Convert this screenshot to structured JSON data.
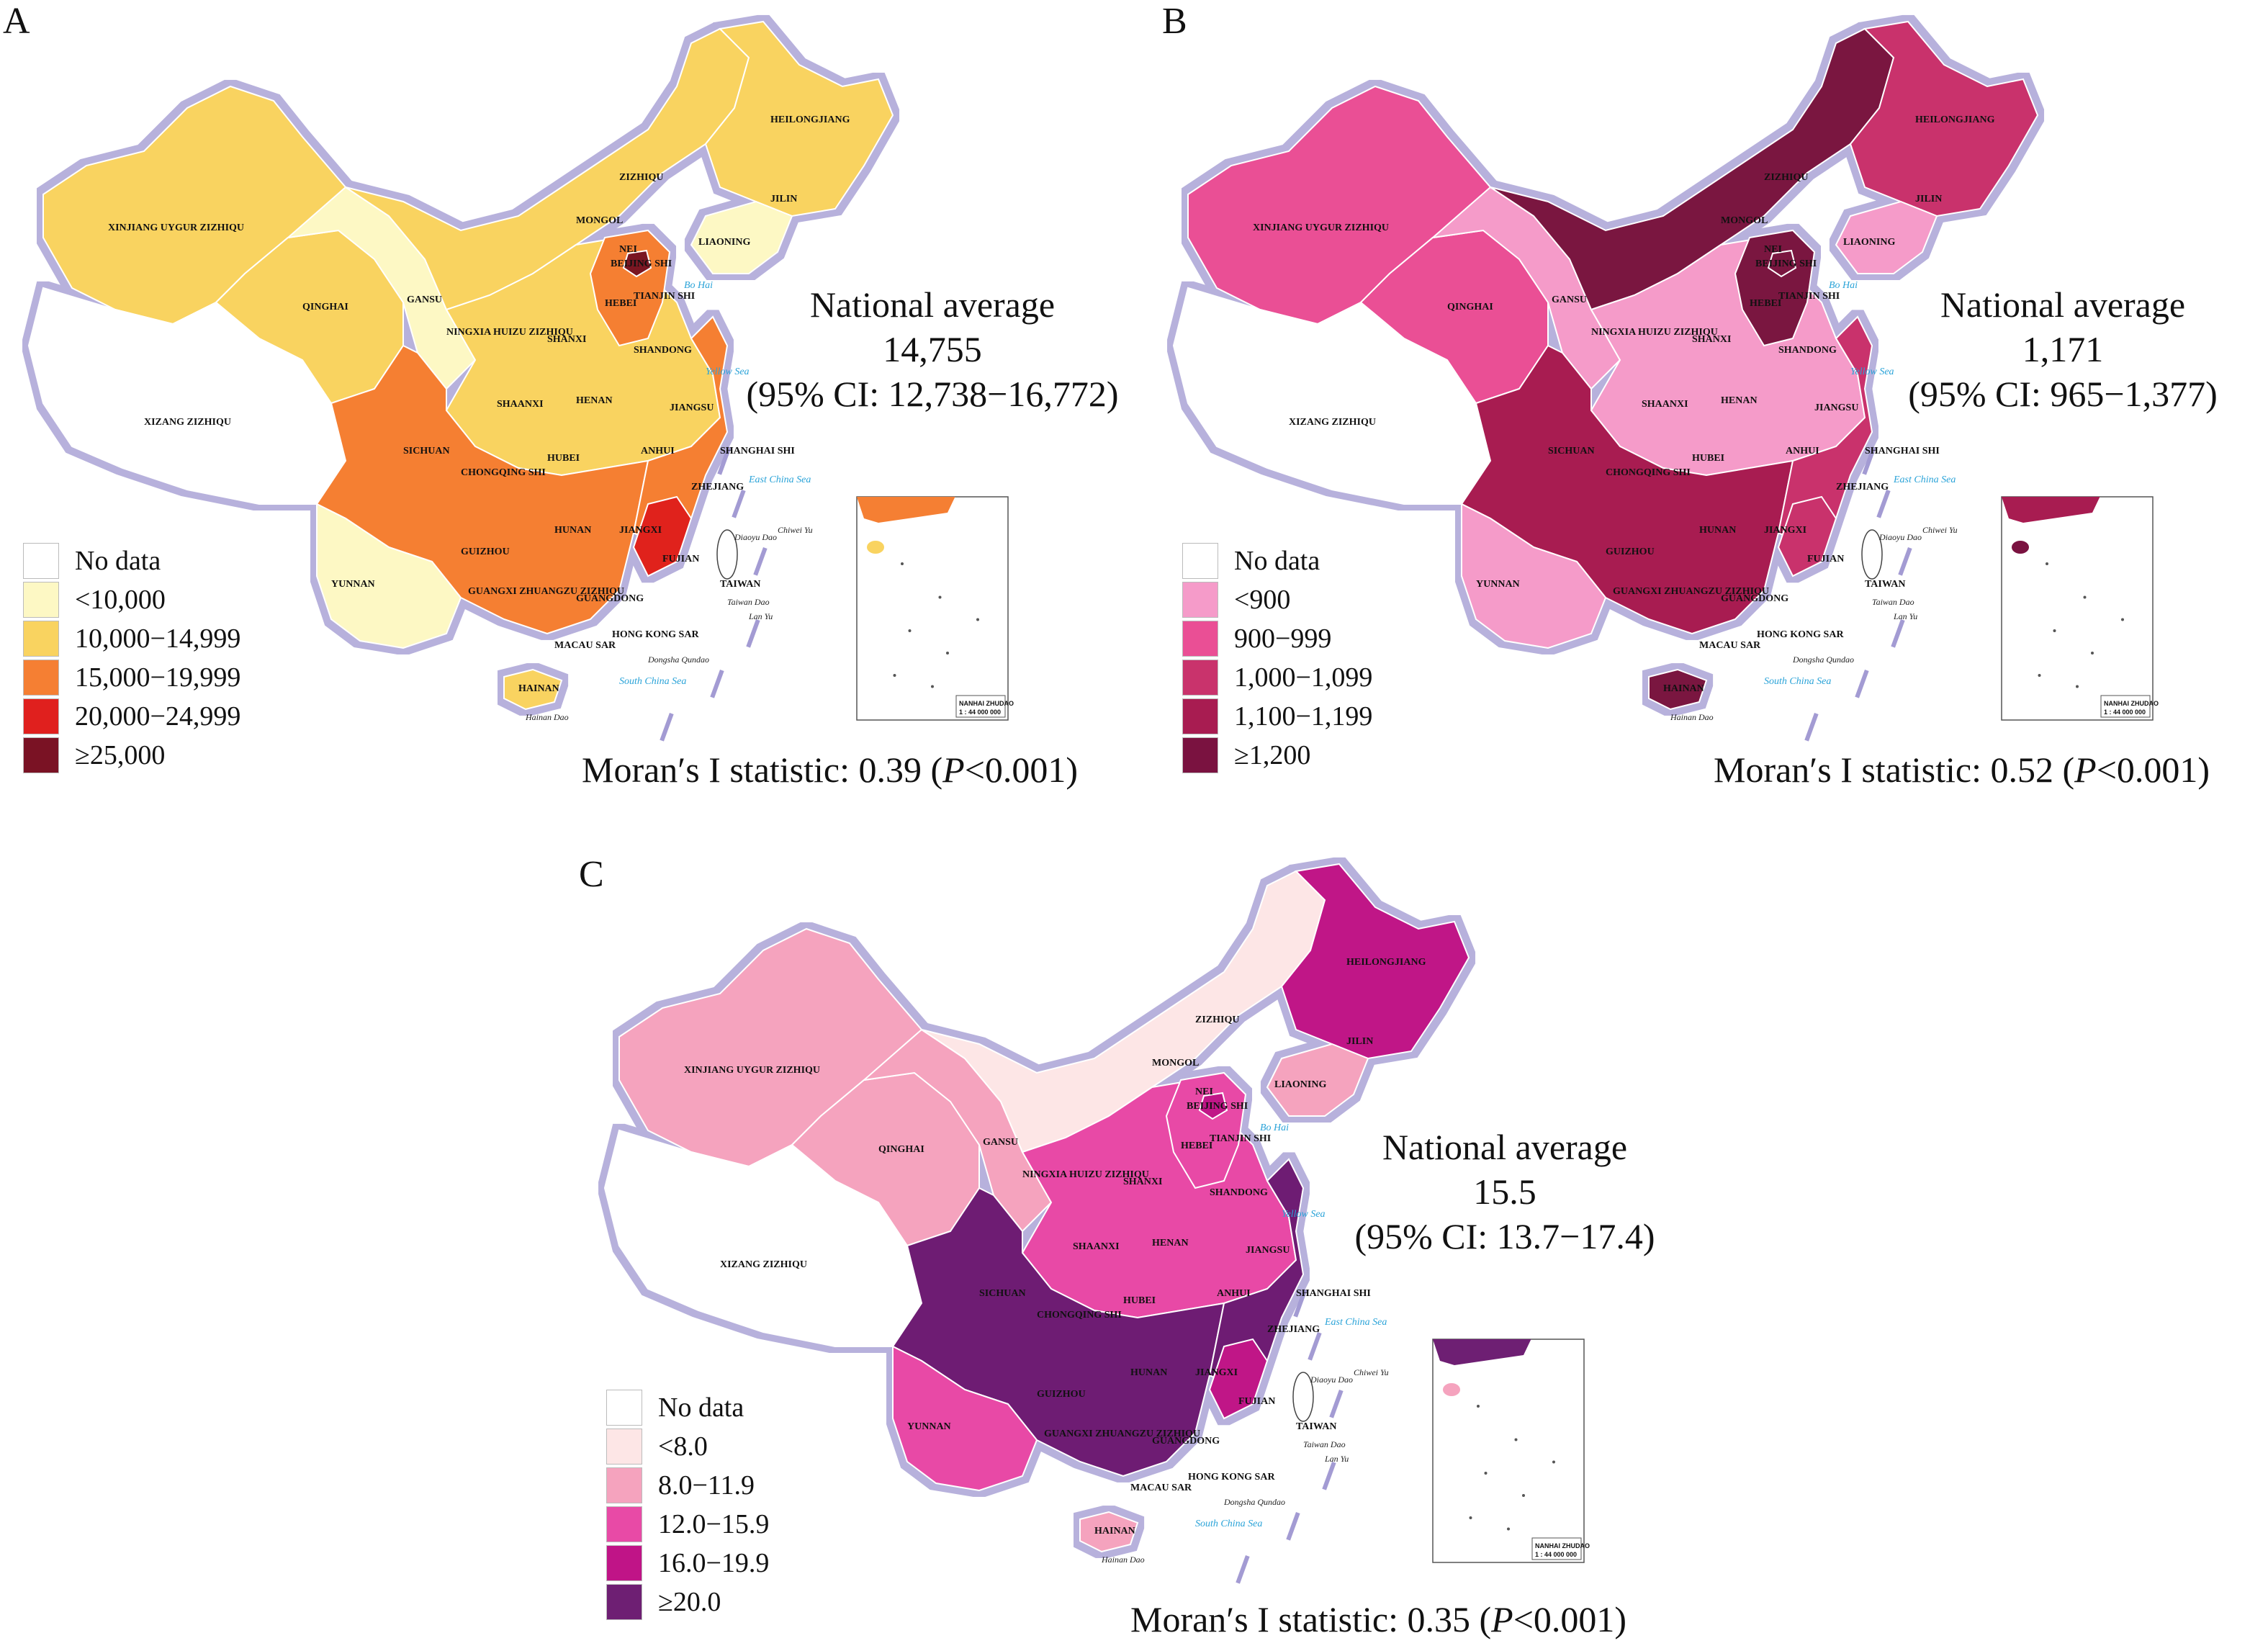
{
  "panels": [
    {
      "id": "A",
      "letter": "A",
      "legend": {
        "items": [
          {
            "label": "No data",
            "color": "#ffffff"
          },
          {
            "label": "<10,000",
            "color": "#fdf8c4"
          },
          {
            "label": "10,000−14,999",
            "color": "#f9d360"
          },
          {
            "label": "15,000−19,999",
            "color": "#f57f33"
          },
          {
            "label": "20,000−24,999",
            "color": "#e0201e"
          },
          {
            "label": "≥25,000",
            "color": "#7a1224"
          }
        ]
      },
      "average": {
        "title": "National average",
        "value": "14,755",
        "ci": "(95% CI: 12,738−16,772)"
      },
      "moran": {
        "prefix": "Moran′s I statistic: 0.39 (",
        "p": "P",
        "suffix": "<0.001)"
      },
      "regions": {
        "northwest": "#f9d360",
        "gansu": "#fdf8c4",
        "qinghai": "#f9d360",
        "xizang": "#ffffff",
        "neimongol": "#f9d360",
        "northeast": "#f9d360",
        "liaoning": "#fdf8c4",
        "central": "#f9d360",
        "hebei": "#f57f33",
        "beijing": "#7a1224",
        "east": "#f57f33",
        "fujian": "#e0201e",
        "southwest": "#f57f33",
        "yunnan": "#fdf8c4",
        "hainan": "#f9d360"
      }
    },
    {
      "id": "B",
      "letter": "B",
      "legend": {
        "items": [
          {
            "label": "No data",
            "color": "#ffffff"
          },
          {
            "label": "<900",
            "color": "#f59bc9"
          },
          {
            "label": "900−999",
            "color": "#ea4f95"
          },
          {
            "label": "1,000−1,099",
            "color": "#c9336c"
          },
          {
            "label": "1,100−1,199",
            "color": "#a81c51"
          },
          {
            "label": "≥1,200",
            "color": "#7a1240"
          }
        ]
      },
      "average": {
        "title": "National average",
        "value": "1,171",
        "ci": "(95% CI: 965−1,377)"
      },
      "moran": {
        "prefix": "Moran′s I statistic: 0.52 (",
        "p": "P",
        "suffix": "<0.001)"
      },
      "regions": {
        "northwest": "#ea4f95",
        "gansu": "#f59bc9",
        "qinghai": "#ea4f95",
        "xizang": "#ffffff",
        "neimongol": "#7a1240",
        "northeast": "#c9336c",
        "liaoning": "#f59bc9",
        "central": "#f59bc9",
        "hebei": "#7a1240",
        "beijing": "#7a1240",
        "east": "#c9336c",
        "fujian": "#c9336c",
        "southwest": "#a81c51",
        "yunnan": "#f59bc9",
        "hainan": "#7a1240"
      }
    },
    {
      "id": "C",
      "letter": "C",
      "legend": {
        "items": [
          {
            "label": "No data",
            "color": "#ffffff"
          },
          {
            "label": "<8.0",
            "color": "#fde6e6"
          },
          {
            "label": "8.0−11.9",
            "color": "#f5a3be"
          },
          {
            "label": "12.0−15.9",
            "color": "#e84aa6"
          },
          {
            "label": "16.0−19.9",
            "color": "#c01487"
          },
          {
            "label": "≥20.0",
            "color": "#6e1f73"
          }
        ]
      },
      "average": {
        "title": "National average",
        "value": "15.5",
        "ci": "(95% CI: 13.7−17.4)"
      },
      "moran": {
        "prefix": "Moran′s I statistic: 0.35 (",
        "p": "P",
        "suffix": "<0.001)"
      },
      "regions": {
        "northwest": "#f5a3be",
        "gansu": "#f5a3be",
        "qinghai": "#f5a3be",
        "xizang": "#ffffff",
        "neimongol": "#fde6e6",
        "northeast": "#c01487",
        "liaoning": "#f5a3be",
        "central": "#e84aa6",
        "hebei": "#e84aa6",
        "beijing": "#c01487",
        "east": "#6e1f73",
        "fujian": "#c01487",
        "southwest": "#6e1f73",
        "yunnan": "#e84aa6",
        "hainan": "#f5a3be"
      }
    }
  ],
  "map_labels": {
    "provinces": [
      "HEILONGJIANG",
      "JILIN",
      "LIAONING",
      "NEI",
      "MONGOL",
      "ZIZHIQU",
      "XINJIANG  UYGUR  ZIZHIQU",
      "QINGHAI",
      "GANSU",
      "NINGXIA HUIZU ZIZHIQU",
      "BEIJING SHI",
      "TIANJIN SHI",
      "HEBEI",
      "SHANXI",
      "SHANDONG",
      "SHAANXI",
      "HENAN",
      "JIANGSU",
      "ANHUI",
      "SHANGHAI SHI",
      "HUBEI",
      "SICHUAN",
      "CHONGQING SHI",
      "ZHEJIANG",
      "XIZANG   ZIZHIQU",
      "HUNAN",
      "JIANGXI",
      "GUIZHOU",
      "FUJIAN",
      "YUNNAN",
      "GUANGXI ZHUANGZU ZIZHIQU",
      "GUANGDONG",
      "TAIWAN",
      "HONG KONG SAR",
      "MACAU SAR",
      "HAINAN"
    ],
    "seas": [
      "Bo Hai",
      "Yellow Sea",
      "East  China  Sea",
      "South  China  Sea"
    ],
    "islands": [
      "Diaoyu Dao",
      "Chiwei Yu",
      "Taiwan Dao",
      "Lan Yu",
      "Dongsha Qundao",
      "Hainan Dao"
    ],
    "inset_title": "NANHAI ZHUDAO",
    "inset_scale": "1 : 44 000 000"
  }
}
